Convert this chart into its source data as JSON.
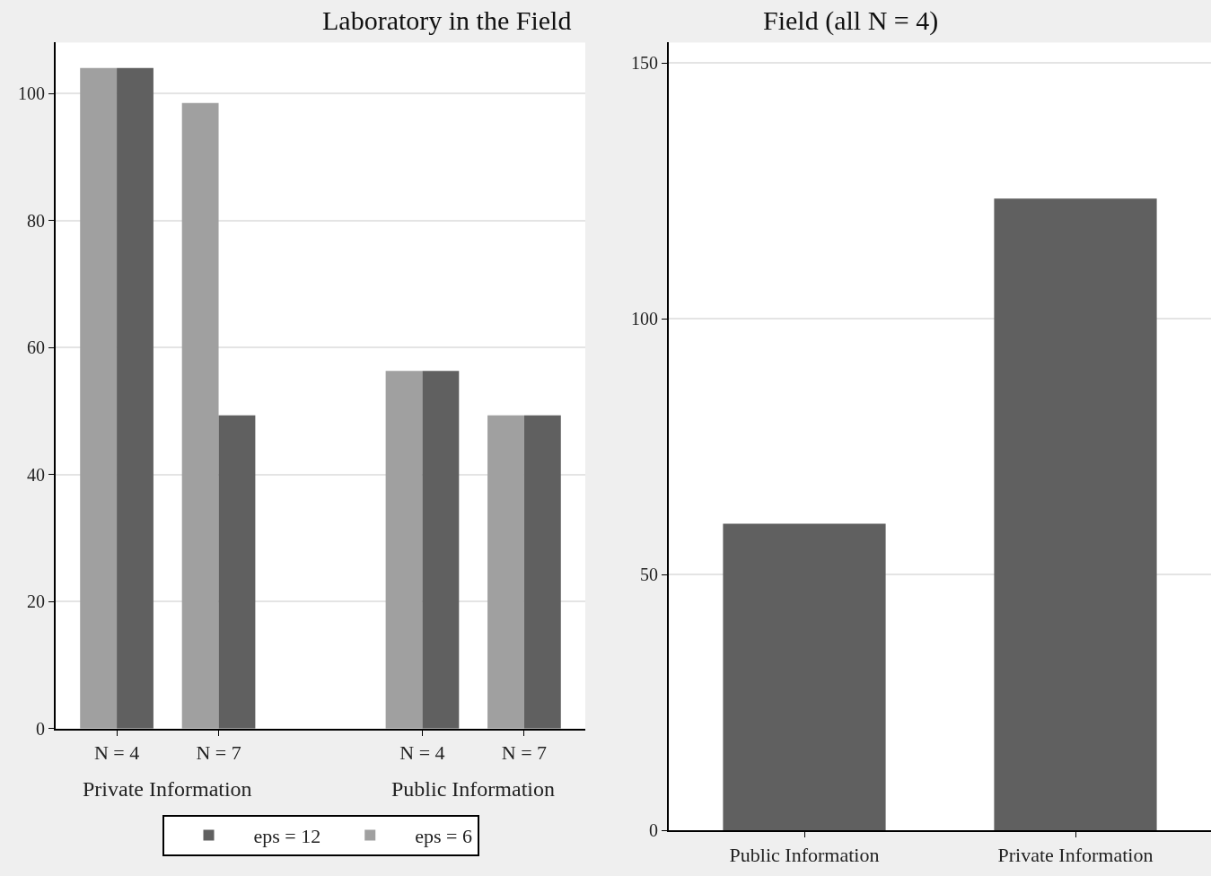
{
  "chart_data": [
    {
      "type": "bar",
      "title": "Laboratory in the Field",
      "categories": [
        "N = 4",
        "N = 7",
        null,
        "N = 4",
        "N = 7"
      ],
      "series": [
        {
          "name": "eps = 6",
          "color": "#a0a0a0",
          "values": [
            104,
            98.5,
            null,
            56.3,
            49.3
          ]
        },
        {
          "name": "eps = 12",
          "color": "#606060",
          "values": [
            104,
            49.3,
            null,
            56.3,
            49.3
          ]
        }
      ],
      "annotations": [
        "Private Information",
        "Public Information"
      ],
      "ylim": [
        0,
        108
      ],
      "yticks": [
        0,
        20,
        40,
        60,
        80,
        100
      ],
      "grid": "y",
      "legend": "bottom"
    },
    {
      "type": "bar",
      "title": "Field (all N = 4)",
      "categories": [
        "Public Information",
        "Private Information"
      ],
      "values": [
        60,
        123.5
      ],
      "color": "#606060",
      "ylim": [
        0,
        154
      ],
      "yticks": [
        0,
        50,
        100,
        150
      ],
      "grid": "y"
    }
  ]
}
